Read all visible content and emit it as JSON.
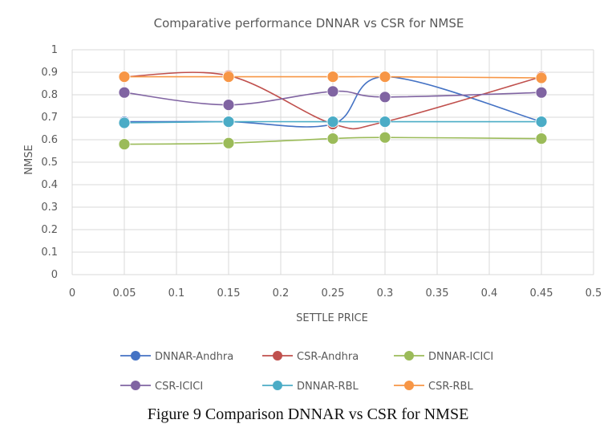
{
  "chart_data": {
    "type": "line",
    "title": "Comparative performance DNNAR vs CSR for NMSE",
    "xlabel": "SETTLE PRICE",
    "ylabel": "NMSE",
    "xlim": [
      0,
      0.5
    ],
    "ylim": [
      0,
      1
    ],
    "x_ticks": [
      "0",
      "0.05",
      "0.1",
      "0.15",
      "0.2",
      "0.25",
      "0.3",
      "0.35",
      "0.4",
      "0.45",
      "0.5"
    ],
    "y_ticks": [
      "0",
      "0.1",
      "0.2",
      "0.3",
      "0.4",
      "0.5",
      "0.6",
      "0.7",
      "0.8",
      "0.9",
      "1"
    ],
    "grid": true,
    "legend_position": "bottom",
    "x": [
      0.05,
      0.15,
      0.25,
      0.3,
      0.45
    ],
    "series": [
      {
        "name": "DNNAR-Andhra",
        "color": "#4472C4",
        "values": [
          0.68,
          0.68,
          0.67,
          0.88,
          0.68
        ]
      },
      {
        "name": "CSR-Andhra",
        "color": "#C0504D",
        "values": [
          0.88,
          0.885,
          0.67,
          0.68,
          0.88
        ]
      },
      {
        "name": "DNNAR-ICICI",
        "color": "#9BBB59",
        "values": [
          0.58,
          0.585,
          0.605,
          0.61,
          0.605
        ]
      },
      {
        "name": "CSR-ICICI",
        "color": "#8064A2",
        "values": [
          0.81,
          0.755,
          0.815,
          0.79,
          0.81
        ]
      },
      {
        "name": "DNNAR-RBL",
        "color": "#4BACC6",
        "values": [
          0.675,
          0.68,
          0.68,
          0.68,
          0.68
        ]
      },
      {
        "name": "CSR-RBL",
        "color": "#F79646",
        "values": [
          0.88,
          0.88,
          0.88,
          0.88,
          0.875
        ]
      }
    ]
  },
  "caption": "Figure 9 Comparison DNNAR vs CSR for NMSE"
}
